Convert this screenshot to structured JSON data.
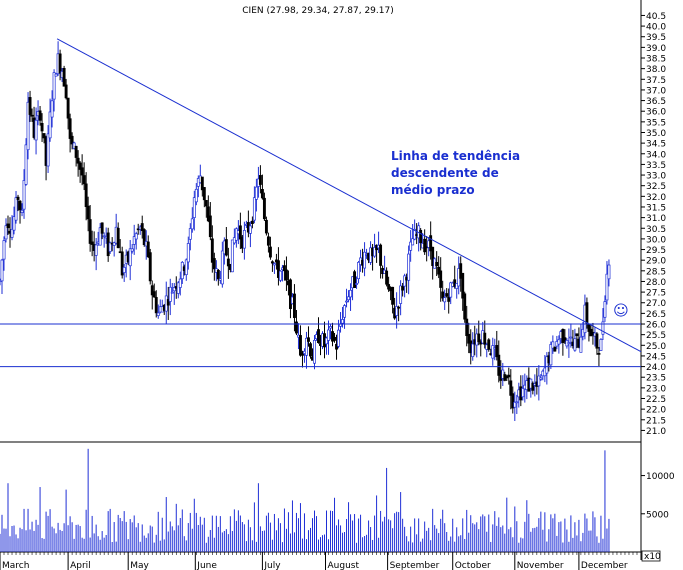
{
  "chart_data": {
    "type": "candlestick",
    "title": "CIEN (27.98, 29.34, 27.87, 29.17)",
    "price_axis": {
      "ylim": [
        20.55,
        40.85
      ],
      "ticks": [
        "21.0",
        "21.5",
        "22.0",
        "22.5",
        "23.0",
        "23.5",
        "24.0",
        "24.5",
        "25.0",
        "25.5",
        "26.0",
        "26.5",
        "27.0",
        "27.5",
        "28.0",
        "28.5",
        "29.0",
        "29.5",
        "30.0",
        "30.5",
        "31.0",
        "31.5",
        "32.0",
        "32.5",
        "33.0",
        "33.5",
        "34.0",
        "34.5",
        "35.0",
        "35.5",
        "36.0",
        "36.5",
        "37.0",
        "37.5",
        "38.0",
        "38.5",
        "39.0",
        "39.5",
        "40.0",
        "40.5"
      ]
    },
    "volume_axis": {
      "ylim": [
        0,
        14000
      ],
      "ticks": [
        {
          "value": 5000,
          "label": "5000"
        },
        {
          "value": 10000,
          "label": "10000"
        }
      ],
      "unit_label": "x10"
    },
    "months": [
      "March",
      "April",
      "May",
      "June",
      "July",
      "August",
      "September",
      "October",
      "November",
      "December"
    ],
    "trend_lines": [
      {
        "kind": "descending",
        "from": {
          "day": 57,
          "price": 39.4
        },
        "to": {
          "day": 640,
          "price": 24.7
        }
      },
      {
        "kind": "horizontal",
        "price": 26.0
      },
      {
        "kind": "horizontal",
        "price": 24.0
      }
    ],
    "annotation": [
      "Linha de tendência",
      "descendente de",
      "médio prazo"
    ],
    "smiley": "☺",
    "anchors": [
      {
        "day": 0,
        "price": 28.0
      },
      {
        "day": 6,
        "price": 31.0
      },
      {
        "day": 12,
        "price": 30.5
      },
      {
        "day": 18,
        "price": 32.0
      },
      {
        "day": 22,
        "price": 31.0
      },
      {
        "day": 28,
        "price": 36.5
      },
      {
        "day": 34,
        "price": 35.0
      },
      {
        "day": 40,
        "price": 36.0
      },
      {
        "day": 46,
        "price": 33.5
      },
      {
        "day": 52,
        "price": 36.8
      },
      {
        "day": 57,
        "price": 38.5
      },
      {
        "day": 62,
        "price": 38.0
      },
      {
        "day": 66,
        "price": 37.0
      },
      {
        "day": 70,
        "price": 34.5
      },
      {
        "day": 76,
        "price": 34.0
      },
      {
        "day": 82,
        "price": 33.0
      },
      {
        "day": 88,
        "price": 30.5
      },
      {
        "day": 94,
        "price": 29.5
      },
      {
        "day": 100,
        "price": 30.5
      },
      {
        "day": 108,
        "price": 29.5
      },
      {
        "day": 116,
        "price": 30.5
      },
      {
        "day": 122,
        "price": 28.5
      },
      {
        "day": 128,
        "price": 29.0
      },
      {
        "day": 134,
        "price": 30.0
      },
      {
        "day": 140,
        "price": 30.5
      },
      {
        "day": 146,
        "price": 29.5
      },
      {
        "day": 152,
        "price": 27.5
      },
      {
        "day": 158,
        "price": 26.5
      },
      {
        "day": 164,
        "price": 27.0
      },
      {
        "day": 170,
        "price": 27.5
      },
      {
        "day": 176,
        "price": 28.0
      },
      {
        "day": 182,
        "price": 28.5
      },
      {
        "day": 188,
        "price": 29.5
      },
      {
        "day": 194,
        "price": 32.0
      },
      {
        "day": 200,
        "price": 33.0
      },
      {
        "day": 206,
        "price": 31.5
      },
      {
        "day": 212,
        "price": 29.0
      },
      {
        "day": 218,
        "price": 28.0
      },
      {
        "day": 224,
        "price": 29.5
      },
      {
        "day": 230,
        "price": 29.0
      },
      {
        "day": 236,
        "price": 30.5
      },
      {
        "day": 242,
        "price": 30.0
      },
      {
        "day": 248,
        "price": 30.5
      },
      {
        "day": 254,
        "price": 31.5
      },
      {
        "day": 258,
        "price": 33.0
      },
      {
        "day": 264,
        "price": 31.0
      },
      {
        "day": 270,
        "price": 29.5
      },
      {
        "day": 276,
        "price": 28.5
      },
      {
        "day": 282,
        "price": 28.5
      },
      {
        "day": 288,
        "price": 27.5
      },
      {
        "day": 294,
        "price": 26.5
      },
      {
        "day": 300,
        "price": 24.5
      },
      {
        "day": 306,
        "price": 25.5
      },
      {
        "day": 312,
        "price": 24.5
      },
      {
        "day": 318,
        "price": 25.5
      },
      {
        "day": 324,
        "price": 25.0
      },
      {
        "day": 330,
        "price": 25.5
      },
      {
        "day": 336,
        "price": 25.0
      },
      {
        "day": 342,
        "price": 26.5
      },
      {
        "day": 348,
        "price": 27.5
      },
      {
        "day": 354,
        "price": 28.0
      },
      {
        "day": 360,
        "price": 29.0
      },
      {
        "day": 366,
        "price": 29.5
      },
      {
        "day": 372,
        "price": 29.0
      },
      {
        "day": 378,
        "price": 29.5
      },
      {
        "day": 382,
        "price": 28.5
      },
      {
        "day": 388,
        "price": 27.5
      },
      {
        "day": 394,
        "price": 26.5
      },
      {
        "day": 400,
        "price": 27.5
      },
      {
        "day": 406,
        "price": 28.5
      },
      {
        "day": 412,
        "price": 30.0
      },
      {
        "day": 418,
        "price": 30.2
      },
      {
        "day": 424,
        "price": 29.8
      },
      {
        "day": 430,
        "price": 29.5
      },
      {
        "day": 436,
        "price": 28.5
      },
      {
        "day": 442,
        "price": 27.0
      },
      {
        "day": 448,
        "price": 27.5
      },
      {
        "day": 454,
        "price": 28.0
      },
      {
        "day": 460,
        "price": 28.5
      },
      {
        "day": 464,
        "price": 26.0
      },
      {
        "day": 470,
        "price": 25.0
      },
      {
        "day": 476,
        "price": 25.5
      },
      {
        "day": 482,
        "price": 25.5
      },
      {
        "day": 488,
        "price": 25.0
      },
      {
        "day": 494,
        "price": 24.5
      },
      {
        "day": 500,
        "price": 23.5
      },
      {
        "day": 506,
        "price": 23.8
      },
      {
        "day": 512,
        "price": 22.5
      },
      {
        "day": 518,
        "price": 22.8
      },
      {
        "day": 524,
        "price": 23.0
      },
      {
        "day": 530,
        "price": 23.2
      },
      {
        "day": 536,
        "price": 23.0
      },
      {
        "day": 542,
        "price": 23.5
      },
      {
        "day": 548,
        "price": 24.5
      },
      {
        "day": 554,
        "price": 25.0
      },
      {
        "day": 560,
        "price": 25.5
      },
      {
        "day": 566,
        "price": 25.5
      },
      {
        "day": 572,
        "price": 25.0
      },
      {
        "day": 578,
        "price": 25.2
      },
      {
        "day": 584,
        "price": 26.5
      },
      {
        "day": 590,
        "price": 25.5
      },
      {
        "day": 596,
        "price": 25.0
      },
      {
        "day": 600,
        "price": 25.0
      },
      {
        "day": 604,
        "price": 27.5
      },
      {
        "day": 608,
        "price": 29.17
      }
    ],
    "volume_spikes": [
      {
        "day": 88,
        "value": 13500
      },
      {
        "day": 386,
        "value": 11000
      },
      {
        "day": 457,
        "value": 10600
      },
      {
        "day": 604,
        "value": 13300
      },
      {
        "day": 258,
        "value": 9000
      },
      {
        "day": 8,
        "value": 9000
      },
      {
        "day": 40,
        "value": 8500
      }
    ]
  }
}
